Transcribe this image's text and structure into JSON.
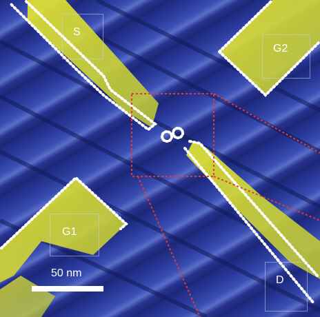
{
  "image": {
    "description_colors": {
      "terrace_dark": "#1c2674",
      "terrace_mid": "#3a4fb3",
      "highlight_yellow": "#f2f238",
      "outline_white": "#ffffff",
      "inset_red": "#e03a3a"
    }
  },
  "labels": {
    "s": "S",
    "g1": "G1",
    "g2": "G2",
    "d": "D"
  },
  "scale_bar": {
    "text": "50 nm"
  }
}
